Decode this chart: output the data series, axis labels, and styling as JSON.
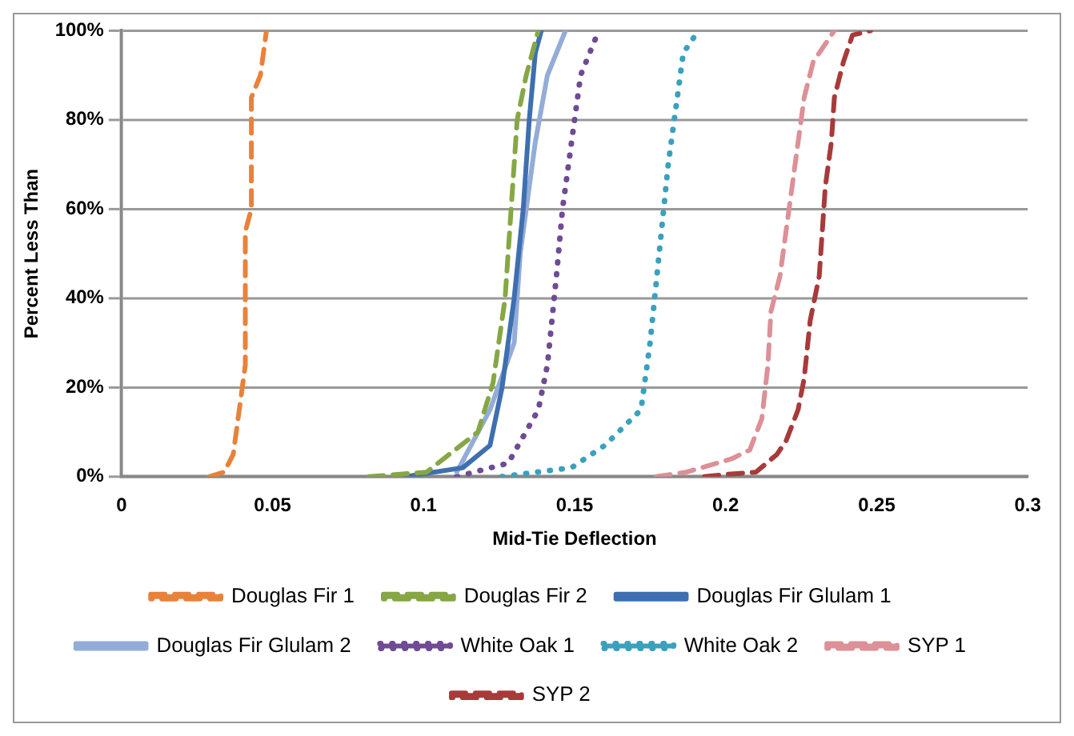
{
  "chart_data": {
    "type": "line",
    "xlabel": "Mid-Tie Deflection",
    "ylabel": "Percent Less Than",
    "xlim": [
      0,
      0.3
    ],
    "xticks": [
      0,
      0.05,
      0.1,
      0.15,
      0.2,
      0.25,
      0.3
    ],
    "ylim": [
      0,
      100
    ],
    "yticks": [
      {
        "value": 0,
        "label": "0%"
      },
      {
        "value": 20,
        "label": "20%"
      },
      {
        "value": 40,
        "label": "40%"
      },
      {
        "value": 60,
        "label": "60%"
      },
      {
        "value": 80,
        "label": "80%"
      },
      {
        "value": 100,
        "label": "100%"
      }
    ],
    "grid": "y",
    "legend": "bottom",
    "marker": "none",
    "series": [
      {
        "name": "Douglas Fir 1",
        "color": "#e8823a",
        "line_style": "dashed",
        "x": [
          0.029,
          0.034,
          0.037,
          0.039,
          0.041,
          0.041,
          0.043,
          0.043,
          0.046,
          0.048
        ],
        "values": [
          0,
          1,
          5,
          15,
          25,
          55,
          60,
          85,
          90,
          100
        ]
      },
      {
        "name": "Douglas Fir 2",
        "color": "#86a744",
        "line_style": "dashed",
        "x": [
          0.082,
          0.101,
          0.118,
          0.123,
          0.127,
          0.129,
          0.131,
          0.134,
          0.138
        ],
        "values": [
          0,
          1,
          10,
          21,
          40,
          60,
          80,
          90,
          100
        ]
      },
      {
        "name": "Douglas Fir Glulam 1",
        "color": "#3e6fb0",
        "line_style": "solid",
        "x": [
          0.094,
          0.113,
          0.122,
          0.126,
          0.13,
          0.133,
          0.135,
          0.137,
          0.139
        ],
        "values": [
          0,
          2,
          7,
          20,
          40,
          60,
          80,
          95,
          100
        ]
      },
      {
        "name": "Douglas Fir Glulam 2",
        "color": "#93acd8",
        "line_style": "solid",
        "x": [
          0.111,
          0.122,
          0.13,
          0.132,
          0.137,
          0.141,
          0.147
        ],
        "values": [
          1,
          15,
          30,
          50,
          75,
          90,
          100
        ]
      },
      {
        "name": "White Oak 1",
        "color": "#6f4b94",
        "line_style": "dotted",
        "x": [
          0.111,
          0.128,
          0.138,
          0.141,
          0.144,
          0.146,
          0.149,
          0.152,
          0.158
        ],
        "values": [
          0,
          3,
          15,
          25,
          45,
          60,
          75,
          90,
          100
        ]
      },
      {
        "name": "White Oak 2",
        "color": "#3aa1bd",
        "line_style": "dotted",
        "x": [
          0.126,
          0.149,
          0.16,
          0.172,
          0.175,
          0.178,
          0.181,
          0.183,
          0.186,
          0.191
        ],
        "values": [
          0,
          2,
          7,
          15,
          30,
          50,
          70,
          80,
          95,
          100
        ]
      },
      {
        "name": "SYP 1",
        "color": "#dc9097",
        "line_style": "dashed",
        "x": [
          0.177,
          0.187,
          0.202,
          0.208,
          0.212,
          0.214,
          0.215,
          0.218,
          0.22,
          0.222,
          0.224,
          0.226,
          0.229,
          0.233,
          0.236
        ],
        "values": [
          0,
          1,
          4,
          6,
          13,
          25,
          37,
          45,
          55,
          65,
          75,
          85,
          93,
          97,
          100
        ]
      },
      {
        "name": "SYP 2",
        "color": "#a83a3a",
        "line_style": "dashed",
        "x": [
          0.193,
          0.2,
          0.21,
          0.217,
          0.22,
          0.224,
          0.226,
          0.228,
          0.231,
          0.233,
          0.235,
          0.236,
          0.239,
          0.242,
          0.248
        ],
        "values": [
          0,
          0.5,
          1,
          5,
          8,
          15,
          22,
          35,
          45,
          65,
          75,
          85,
          93,
          99,
          100
        ]
      }
    ]
  }
}
